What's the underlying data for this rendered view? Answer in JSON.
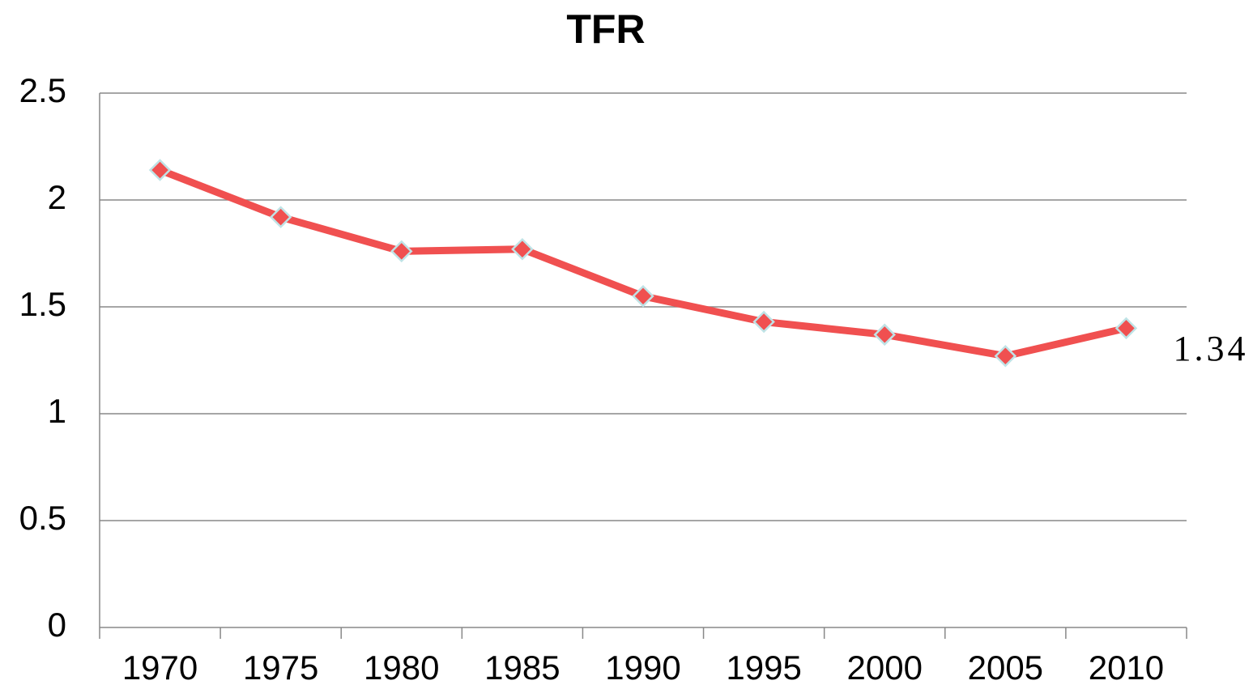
{
  "chart_data": {
    "type": "line",
    "title": "TFR",
    "categories": [
      "1970",
      "1975",
      "1980",
      "1985",
      "1990",
      "1995",
      "2000",
      "2005",
      "2010"
    ],
    "series": [
      {
        "name": "TFR",
        "color": "#f05050",
        "values": [
          2.14,
          1.92,
          1.76,
          1.77,
          1.55,
          1.43,
          1.37,
          1.27,
          1.4
        ]
      }
    ],
    "ylim": [
      0,
      2.5
    ],
    "yticks": [
      0,
      0.5,
      1,
      1.5,
      2,
      2.5
    ],
    "grid": true,
    "annotations": [
      "1.34"
    ]
  }
}
